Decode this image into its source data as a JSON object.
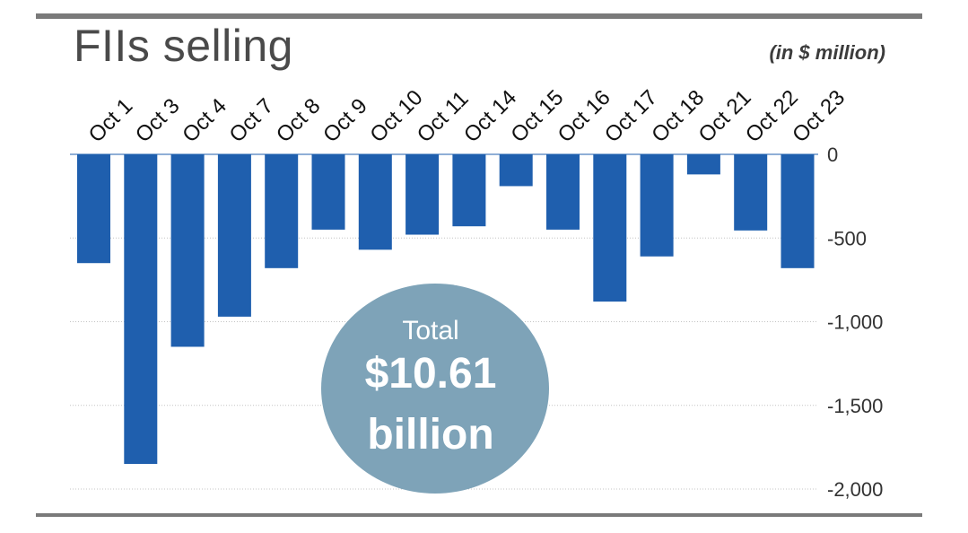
{
  "chart_data": {
    "type": "bar",
    "title": "FIIs selling",
    "unit_label": "(in $ million)",
    "categories": [
      "Oct 1",
      "Oct 3",
      "Oct 4",
      "Oct 7",
      "Oct 8",
      "Oct 9",
      "Oct 10",
      "Oct 11",
      "Oct 14",
      "Oct 15",
      "Oct 16",
      "Oct 17",
      "Oct 18",
      "Oct 21",
      "Oct 22",
      "Oct 23"
    ],
    "values": [
      -650,
      -1850,
      -1150,
      -970,
      -680,
      -450,
      -570,
      -480,
      -430,
      -190,
      -450,
      -880,
      -610,
      -120,
      -455,
      -680
    ],
    "ylim": [
      -2000,
      0
    ],
    "yticks": [
      0,
      -500,
      -1000,
      -1500,
      -2000
    ],
    "ytick_labels": [
      "0",
      "-500",
      "-1,000",
      "-1,500",
      "-2,000"
    ],
    "grid": true,
    "bar_color": "#1f5fae",
    "annotation": {
      "label": "Total",
      "value": "$10.61",
      "unit": "billion",
      "color": "#7ea3b8"
    }
  }
}
